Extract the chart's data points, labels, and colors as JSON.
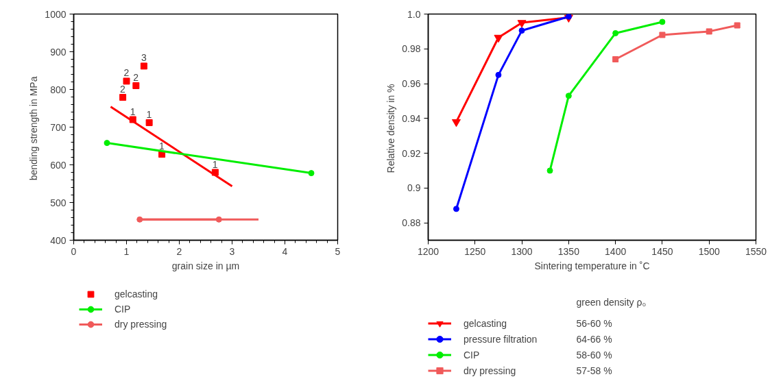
{
  "chart_data": [
    {
      "type": "scatter",
      "xlabel": "grain size in µm",
      "ylabel": "bending strength  in MPa",
      "xlim": [
        0,
        5
      ],
      "ylim": [
        400,
        1000
      ],
      "xticks": [
        0,
        1,
        2,
        3,
        4,
        5,
        {
          "value": 0.2,
          "label": null
        },
        {
          "value": 0.4,
          "label": null
        },
        {
          "value": 0.6,
          "label": null
        },
        {
          "value": 0.8,
          "label": null
        },
        {
          "value": 1.2,
          "label": null
        },
        {
          "value": 1.4,
          "label": null
        },
        {
          "value": 1.6,
          "label": null
        },
        {
          "value": 1.8,
          "label": null
        },
        {
          "value": 2.2,
          "label": null
        },
        {
          "value": 2.4,
          "label": null
        },
        {
          "value": 2.6,
          "label": null
        },
        {
          "value": 2.8,
          "label": null
        },
        {
          "value": 3.2,
          "label": null
        },
        {
          "value": 3.4,
          "label": null
        },
        {
          "value": 3.6,
          "label": null
        },
        {
          "value": 3.8,
          "label": null
        },
        {
          "value": 4.2,
          "label": null
        },
        {
          "value": 4.4,
          "label": null
        },
        {
          "value": 4.6,
          "label": null
        },
        {
          "value": 4.8,
          "label": null
        }
      ],
      "yticks": [
        400,
        500,
        600,
        700,
        800,
        900,
        1000,
        {
          "value": 420,
          "label": null
        },
        {
          "value": 440,
          "label": null
        },
        {
          "value": 460,
          "label": null
        },
        {
          "value": 480,
          "label": null
        },
        {
          "value": 520,
          "label": null
        },
        {
          "value": 540,
          "label": null
        },
        {
          "value": 560,
          "label": null
        },
        {
          "value": 580,
          "label": null
        },
        {
          "value": 620,
          "label": null
        },
        {
          "value": 640,
          "label": null
        },
        {
          "value": 660,
          "label": null
        },
        {
          "value": 680,
          "label": null
        },
        {
          "value": 720,
          "label": null
        },
        {
          "value": 740,
          "label": null
        },
        {
          "value": 760,
          "label": null
        },
        {
          "value": 780,
          "label": null
        },
        {
          "value": 820,
          "label": null
        },
        {
          "value": 840,
          "label": null
        },
        {
          "value": 860,
          "label": null
        },
        {
          "value": 880,
          "label": null
        },
        {
          "value": 920,
          "label": null
        },
        {
          "value": 940,
          "label": null
        },
        {
          "value": 960,
          "label": null
        },
        {
          "value": 980,
          "label": null
        }
      ],
      "grid": false,
      "legend": "bottom left",
      "annotations": [
        {
          "text": "2",
          "x": 0.93,
          "y": 779
        },
        {
          "text": "2",
          "x": 1.0,
          "y": 822
        },
        {
          "text": "2",
          "x": 1.18,
          "y": 810
        },
        {
          "text": "3",
          "x": 1.33,
          "y": 862
        },
        {
          "text": "1",
          "x": 1.12,
          "y": 720
        },
        {
          "text": "1",
          "x": 1.43,
          "y": 712
        },
        {
          "text": "1",
          "x": 1.67,
          "y": 628
        },
        {
          "text": "1",
          "x": 2.68,
          "y": 580
        }
      ],
      "series": [
        {
          "name": "gelcasting",
          "type": "scatter",
          "marker": "square",
          "color": "#ff0000",
          "x": [
            0.93,
            1.0,
            1.18,
            1.33,
            1.12,
            1.43,
            1.67,
            2.68
          ],
          "values": [
            779,
            822,
            810,
            862,
            720,
            712,
            628,
            580
          ]
        },
        {
          "type": "line",
          "marker": "none",
          "color": "#ff0000",
          "x": [
            0.7,
            3.0
          ],
          "values": [
            754,
            543
          ]
        },
        {
          "name": "CIP",
          "type": "line",
          "marker": "circle",
          "color": "#00ee00",
          "x": [
            0.63,
            4.5
          ],
          "values": [
            658,
            578
          ]
        },
        {
          "type": "line",
          "marker": "none",
          "color": "#f05a5a",
          "x": [
            1.2,
            3.5
          ],
          "values": [
            455,
            455
          ]
        },
        {
          "name": "dry pressing",
          "type": "line",
          "marker": "circle",
          "color": "#f05a5a",
          "x": [
            1.25,
            2.75
          ],
          "values": [
            455,
            455
          ]
        }
      ]
    },
    {
      "type": "line",
      "xlabel": "Sintering temperature in ˚C",
      "ylabel": "Relative density  in %",
      "legend_title": "green density ρ₀",
      "xlim": [
        1200,
        1550
      ],
      "ylim": [
        0.87,
        1.0
      ],
      "xticks": [
        1200,
        1250,
        1300,
        1350,
        1400,
        1450,
        1500,
        1550
      ],
      "yticks": [
        0.88,
        {
          "value": 0.9,
          "label": "0.9"
        },
        0.92,
        0.94,
        0.96,
        0.98,
        {
          "value": 1.0,
          "label": "1.0"
        }
      ],
      "grid": false,
      "legend": "bottom",
      "annotations": [
        "56-60 %",
        "64-66 %",
        "58-60 %",
        "57-58 %"
      ],
      "series": [
        {
          "name": "gelcasting",
          "marker": "triangle_down",
          "color": "#ff0000",
          "x": [
            1230,
            1275,
            1300,
            1350
          ],
          "values": [
            0.938,
            0.9865,
            0.995,
            0.998
          ]
        },
        {
          "name": "pressure filtration",
          "marker": "circle",
          "color": "#0000ff",
          "x": [
            1230,
            1275,
            1300,
            1350
          ],
          "values": [
            0.888,
            0.965,
            0.9905,
            0.9985
          ]
        },
        {
          "name": "CIP",
          "marker": "circle",
          "color": "#00ee00",
          "x": [
            1330,
            1350,
            1400,
            1450
          ],
          "values": [
            0.91,
            0.953,
            0.989,
            0.9955
          ]
        },
        {
          "name": "dry pressing",
          "marker": "square",
          "color": "#f05a5a",
          "x": [
            1400,
            1450,
            1500,
            1530
          ],
          "values": [
            0.974,
            0.988,
            0.99,
            0.9935
          ]
        }
      ]
    }
  ]
}
